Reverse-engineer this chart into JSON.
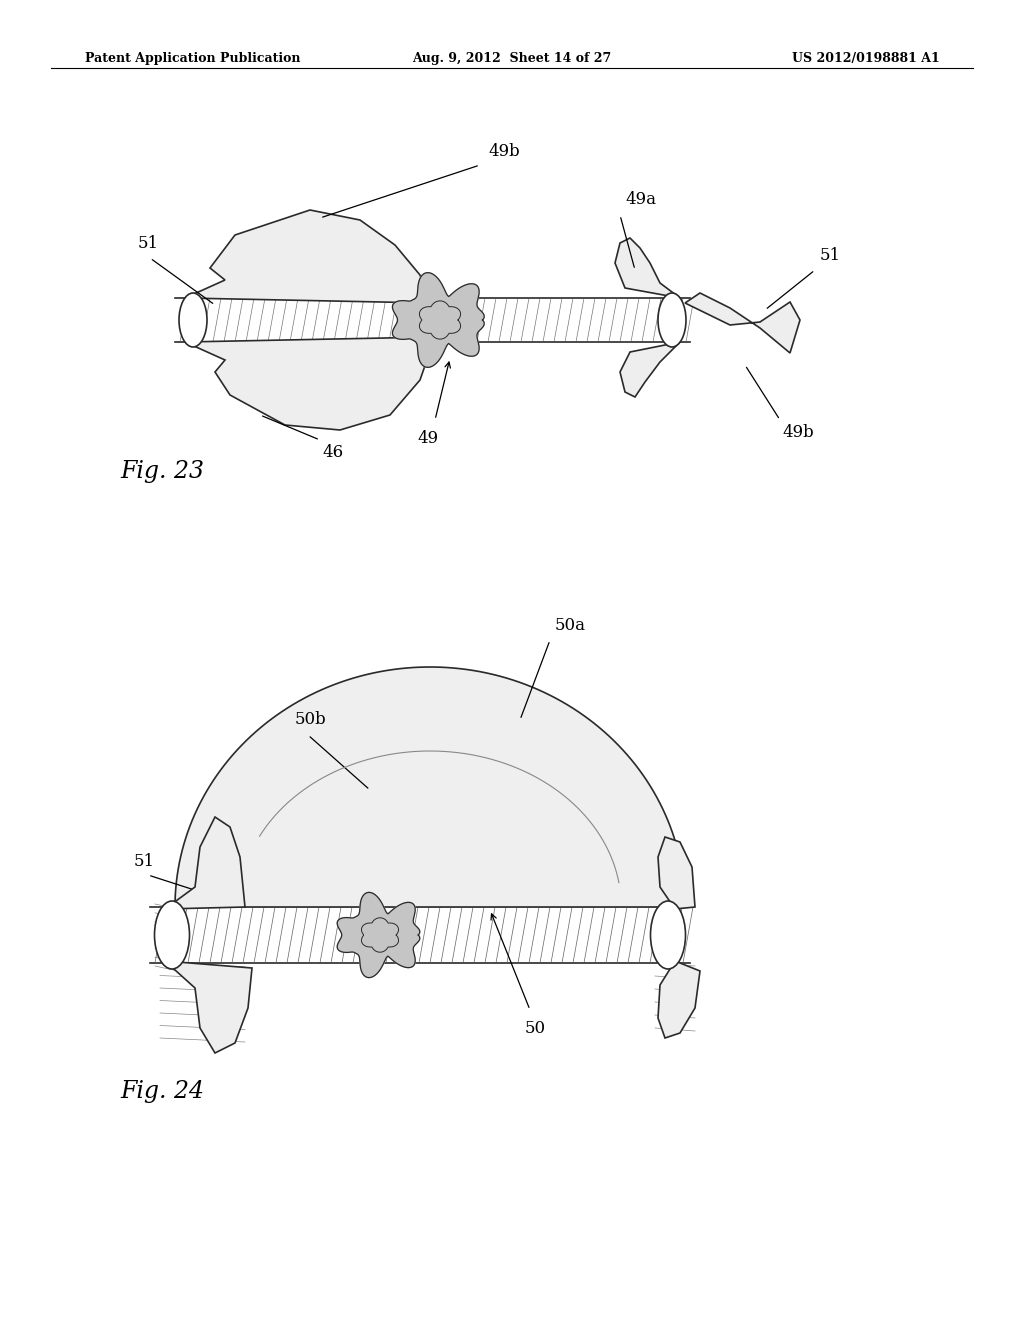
{
  "background_color": "#ffffff",
  "header_left": "Patent Application Publication",
  "header_mid": "Aug. 9, 2012  Sheet 14 of 27",
  "header_right": "US 2012/0198881 A1",
  "fig23_label": "Fig. 23",
  "fig24_label": "Fig. 24"
}
